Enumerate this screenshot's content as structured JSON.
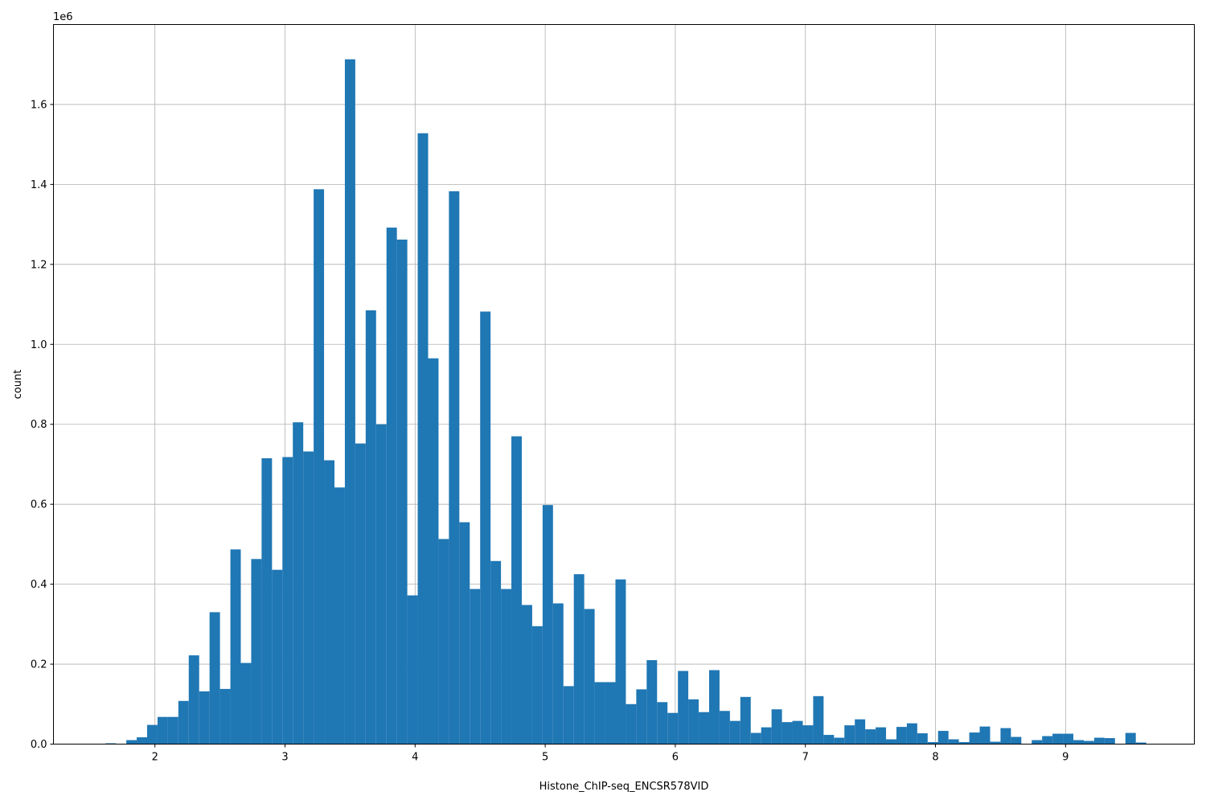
{
  "chart_data": {
    "type": "bar",
    "xlabel": "Histone_ChIP-seq_ENCSR578VID",
    "ylabel": "count",
    "y_offset_label": "1e6",
    "y_multiplier": 1000000,
    "xlim": [
      1.22,
      9.99
    ],
    "ylim": [
      0,
      1.8
    ],
    "grid": true,
    "bar_color": "#1f77b4",
    "x_ticks": [
      2,
      3,
      4,
      5,
      6,
      7,
      8,
      9
    ],
    "x_tick_labels": [
      "2",
      "3",
      "4",
      "5",
      "6",
      "7",
      "8",
      "9"
    ],
    "y_ticks": [
      0,
      0.2,
      0.4,
      0.6,
      0.8,
      1.0,
      1.2,
      1.4,
      1.6
    ],
    "y_tick_labels": [
      "0.0",
      "0.2",
      "0.4",
      "0.6",
      "0.8",
      "1.0",
      "1.2",
      "1.4",
      "1.6"
    ],
    "bins": {
      "start": 1.62,
      "width": 0.08,
      "values": [
        0.002,
        0,
        0.01,
        0.017,
        0.048,
        0.068,
        0.068,
        0.108,
        0.222,
        0.132,
        0.33,
        0.138,
        0.487,
        0.203,
        0.463,
        0.715,
        0.436,
        0.718,
        0.805,
        0.732,
        1.388,
        0.71,
        0.642,
        1.713,
        0.752,
        1.085,
        0.8,
        1.292,
        1.262,
        0.372,
        1.528,
        0.965,
        0.513,
        1.383,
        0.555,
        0.388,
        1.082,
        0.458,
        0.388,
        0.77,
        0.348,
        0.295,
        0.598,
        0.352,
        0.145,
        0.425,
        0.338,
        0.155,
        0.155,
        0.412,
        0.1,
        0.137,
        0.21,
        0.105,
        0.078,
        0.183,
        0.112,
        0.08,
        0.185,
        0.083,
        0.058,
        0.118,
        0.028,
        0.042,
        0.087,
        0.055,
        0.058,
        0.047,
        0.12,
        0.023,
        0.016,
        0.047,
        0.062,
        0.037,
        0.042,
        0.012,
        0.043,
        0.052,
        0.027,
        0.005,
        0.033,
        0.012,
        0.005,
        0.029,
        0.044,
        0.006,
        0.04,
        0.018,
        0,
        0.01,
        0.02,
        0.026,
        0.026,
        0.01,
        0.008,
        0.016,
        0.015,
        0,
        0.028,
        0.004
      ]
    }
  }
}
